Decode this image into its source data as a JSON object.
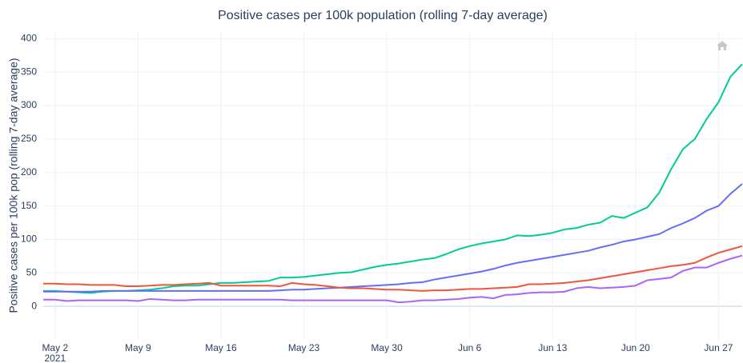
{
  "chart_data": {
    "type": "line",
    "title": "Positive cases per 100k population (rolling 7-day average)",
    "y_label": "Positive cases per 100k pop (rolling 7-day average)",
    "x": [
      "2021-05-01",
      "2021-05-02",
      "2021-05-03",
      "2021-05-04",
      "2021-05-05",
      "2021-05-06",
      "2021-05-07",
      "2021-05-08",
      "2021-05-09",
      "2021-05-10",
      "2021-05-11",
      "2021-05-12",
      "2021-05-13",
      "2021-05-14",
      "2021-05-15",
      "2021-05-16",
      "2021-05-17",
      "2021-05-18",
      "2021-05-19",
      "2021-05-20",
      "2021-05-21",
      "2021-05-22",
      "2021-05-23",
      "2021-05-24",
      "2021-05-25",
      "2021-05-26",
      "2021-05-27",
      "2021-05-28",
      "2021-05-29",
      "2021-05-30",
      "2021-05-31",
      "2021-06-01",
      "2021-06-02",
      "2021-06-03",
      "2021-06-04",
      "2021-06-05",
      "2021-06-06",
      "2021-06-07",
      "2021-06-08",
      "2021-06-09",
      "2021-06-10",
      "2021-06-11",
      "2021-06-12",
      "2021-06-13",
      "2021-06-14",
      "2021-06-15",
      "2021-06-16",
      "2021-06-17",
      "2021-06-18",
      "2021-06-19",
      "2021-06-20",
      "2021-06-21",
      "2021-06-22",
      "2021-06-23",
      "2021-06-24",
      "2021-06-25",
      "2021-06-26",
      "2021-06-27",
      "2021-06-28",
      "2021-06-29"
    ],
    "series": [
      {
        "color": "#00cc96",
        "values": [
          23,
          23,
          22,
          21,
          20,
          22,
          23,
          23,
          24,
          25,
          27,
          30,
          31,
          31,
          33,
          35,
          35,
          36,
          37,
          38,
          43,
          43,
          44,
          46,
          48,
          50,
          51,
          55,
          59,
          62,
          64,
          67,
          70,
          72,
          78,
          85,
          90,
          94,
          97,
          100,
          106,
          105,
          107,
          110,
          115,
          117,
          122,
          125,
          135,
          132,
          140,
          148,
          170,
          205,
          235,
          250,
          280,
          305,
          343,
          362
        ]
      },
      {
        "color": "#636efa",
        "values": [
          22,
          22,
          22,
          22,
          22,
          23,
          23,
          23,
          23,
          23,
          23,
          23,
          23,
          23,
          23,
          23,
          23,
          23,
          23,
          23,
          24,
          25,
          25,
          26,
          27,
          28,
          29,
          30,
          31,
          32,
          33,
          35,
          36,
          40,
          43,
          46,
          49,
          52,
          56,
          61,
          65,
          68,
          71,
          74,
          77,
          80,
          83,
          88,
          92,
          97,
          100,
          104,
          108,
          117,
          124,
          132,
          143,
          150,
          168,
          183
        ]
      },
      {
        "color": "#ef553b",
        "values": [
          34,
          34,
          33,
          33,
          32,
          32,
          32,
          30,
          30,
          31,
          32,
          32,
          33,
          34,
          35,
          31,
          31,
          31,
          31,
          31,
          30,
          35,
          33,
          32,
          30,
          28,
          27,
          27,
          26,
          25,
          25,
          24,
          23,
          24,
          24,
          25,
          26,
          26,
          27,
          28,
          29,
          33,
          33,
          34,
          35,
          37,
          39,
          42,
          45,
          48,
          51,
          54,
          57,
          60,
          62,
          65,
          73,
          80,
          85,
          90
        ]
      },
      {
        "color": "#ab63fa",
        "values": [
          10,
          10,
          8,
          9,
          9,
          9,
          9,
          9,
          8,
          11,
          10,
          9,
          9,
          10,
          10,
          10,
          10,
          10,
          10,
          10,
          10,
          9,
          9,
          9,
          9,
          9,
          9,
          9,
          9,
          9,
          6,
          7,
          9,
          9,
          10,
          11,
          13,
          14,
          12,
          17,
          18,
          20,
          21,
          21,
          22,
          27,
          29,
          27,
          28,
          29,
          31,
          39,
          41,
          43,
          53,
          58,
          58,
          65,
          71,
          76
        ]
      }
    ],
    "xlim": [
      "2021-05-01",
      "2021-06-29"
    ],
    "xticks": [
      {
        "value": "2021-05-02",
        "label": "May 2"
      },
      {
        "value": "2021-05-09",
        "label": "May 9"
      },
      {
        "value": "2021-05-16",
        "label": "May 16"
      },
      {
        "value": "2021-05-23",
        "label": "May 23"
      },
      {
        "value": "2021-05-30",
        "label": "May 30"
      },
      {
        "value": "2021-06-06",
        "label": "Jun 6"
      },
      {
        "value": "2021-06-13",
        "label": "Jun 13"
      },
      {
        "value": "2021-06-20",
        "label": "Jun 20"
      },
      {
        "value": "2021-06-27",
        "label": "Jun 27"
      }
    ],
    "xtick_year": "2021",
    "ylim": [
      -50,
      410
    ],
    "yticks": [
      0,
      50,
      100,
      150,
      200,
      250,
      300,
      350,
      400
    ],
    "grid": true
  }
}
